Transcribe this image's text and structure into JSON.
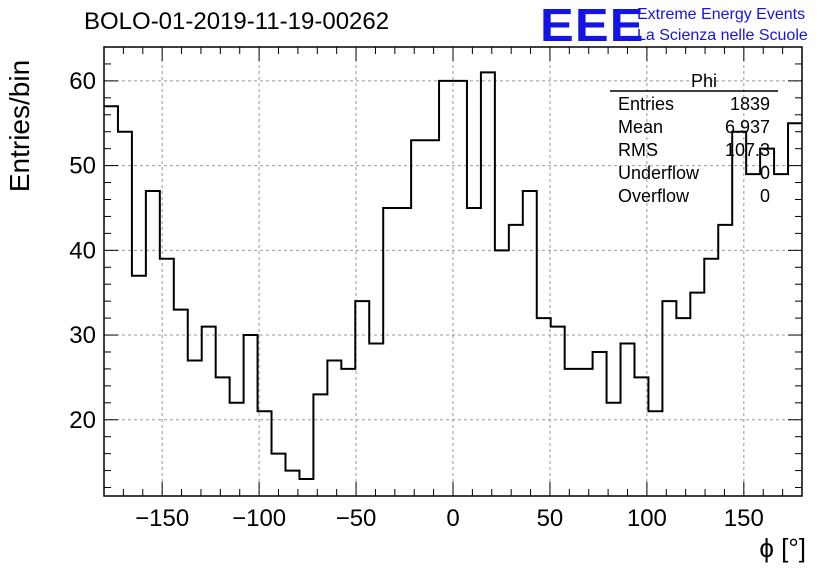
{
  "header": {
    "title": "BOLO-01-2019-11-19-00262",
    "logo_letters": "EEE",
    "logo_line1": "Extreme Energy Events",
    "logo_line2": "La Scienza nelle Scuole"
  },
  "stats": {
    "name": "Phi",
    "rows": [
      {
        "label": "Entries",
        "value": "1839"
      },
      {
        "label": "Mean",
        "value": "6.937"
      },
      {
        "label": "RMS",
        "value": "107.3"
      },
      {
        "label": "Underflow",
        "value": "0"
      },
      {
        "label": "Overflow",
        "value": "0"
      }
    ]
  },
  "chart_data": {
    "type": "histogram",
    "xlabel": "ϕ [°]",
    "ylabel": "Entries/bin",
    "xlim": [
      -180,
      180
    ],
    "ylim": [
      11,
      64
    ],
    "bin_width": 7.2,
    "xticks": [
      -150,
      -100,
      -50,
      0,
      50,
      100,
      150
    ],
    "xtick_labels": [
      "−150",
      "−100",
      "−50",
      "0",
      "50",
      "100",
      "150"
    ],
    "yticks": [
      20,
      30,
      40,
      50,
      60
    ],
    "yticks_labels": [
      "20",
      "30",
      "40",
      "50",
      "60"
    ],
    "grid": true,
    "values": [
      57,
      54,
      37,
      47,
      39,
      33,
      27,
      31,
      25,
      22,
      30,
      21,
      16,
      14,
      13,
      23,
      27,
      26,
      34,
      29,
      45,
      45,
      53,
      53,
      60,
      60,
      45,
      61,
      40,
      43,
      47,
      32,
      31,
      26,
      26,
      28,
      22,
      29,
      25,
      21,
      34,
      32,
      35,
      39,
      43,
      54,
      49,
      52,
      49,
      55
    ]
  }
}
